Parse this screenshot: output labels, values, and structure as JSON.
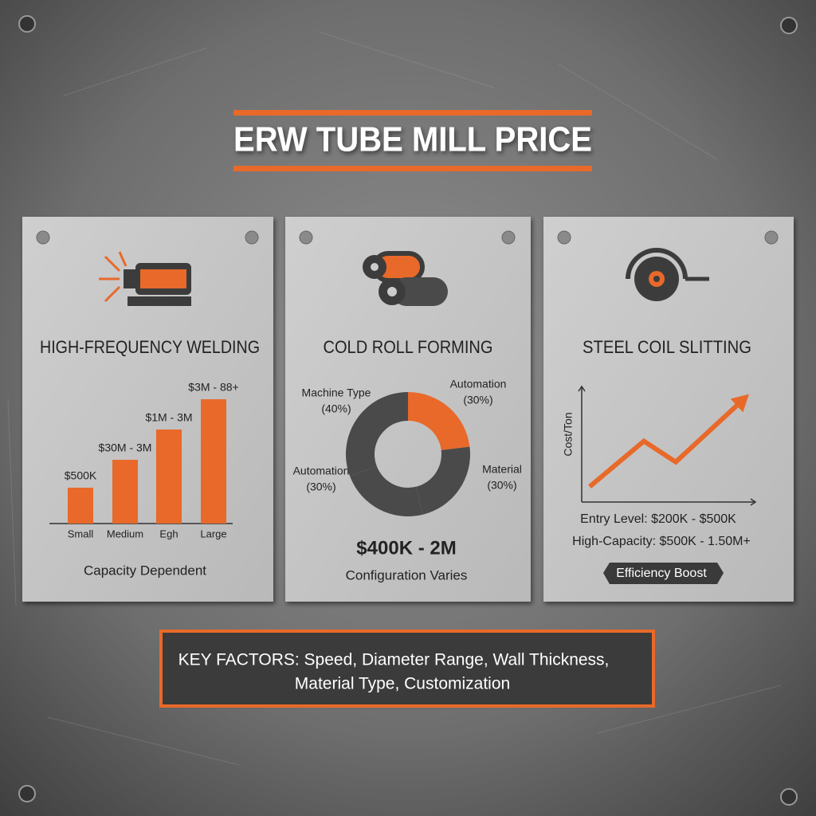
{
  "title": "ERW TUBE MILL PRICE",
  "chart_data": [
    {
      "type": "bar",
      "title": "HIGH-FREQUENCY WELDING",
      "categories": [
        "Small",
        "Medium",
        "Egh",
        "Large"
      ],
      "values": [
        45,
        80,
        118,
        156
      ],
      "annotations": [
        "$500K",
        "$30M - 3M",
        "$1M - 3M",
        "$3M - 88+"
      ],
      "ylim": [
        0,
        160
      ],
      "color": "#e8692a",
      "caption": "Capacity Dependent"
    },
    {
      "type": "pie",
      "title": "COLD ROLL FORMING",
      "categories": [
        "Automation",
        "Material",
        "Automation",
        "Machine Type"
      ],
      "values": [
        30,
        30,
        30,
        40
      ],
      "value_labels": [
        "(30%)",
        "(30%)",
        "(30%)",
        "(40%)"
      ],
      "colors": [
        "#e8692a",
        "#4a4a4a",
        "#4a4a4a",
        "#4a4a4a"
      ],
      "price": "$400K - 2M",
      "caption": "Configuration Varies"
    },
    {
      "type": "line",
      "title": "STEEL COIL SLITTING",
      "ylabel": "Cost/Ton",
      "x": [
        10,
        78,
        118,
        210
      ],
      "values": [
        20,
        79,
        52,
        140
      ],
      "xlim": [
        0,
        218
      ],
      "ylim": [
        0,
        150
      ],
      "color": "#e8692a",
      "notes": [
        "Entry Level: $200K - $500K",
        "High-Capacity: $500K - 1.50M+"
      ],
      "badge": "Efficiency Boost"
    }
  ],
  "key_factors": [
    "KEY FACTORS: Speed, Diameter Range, Wall Thickness,",
    "Material Type, Customization"
  ]
}
